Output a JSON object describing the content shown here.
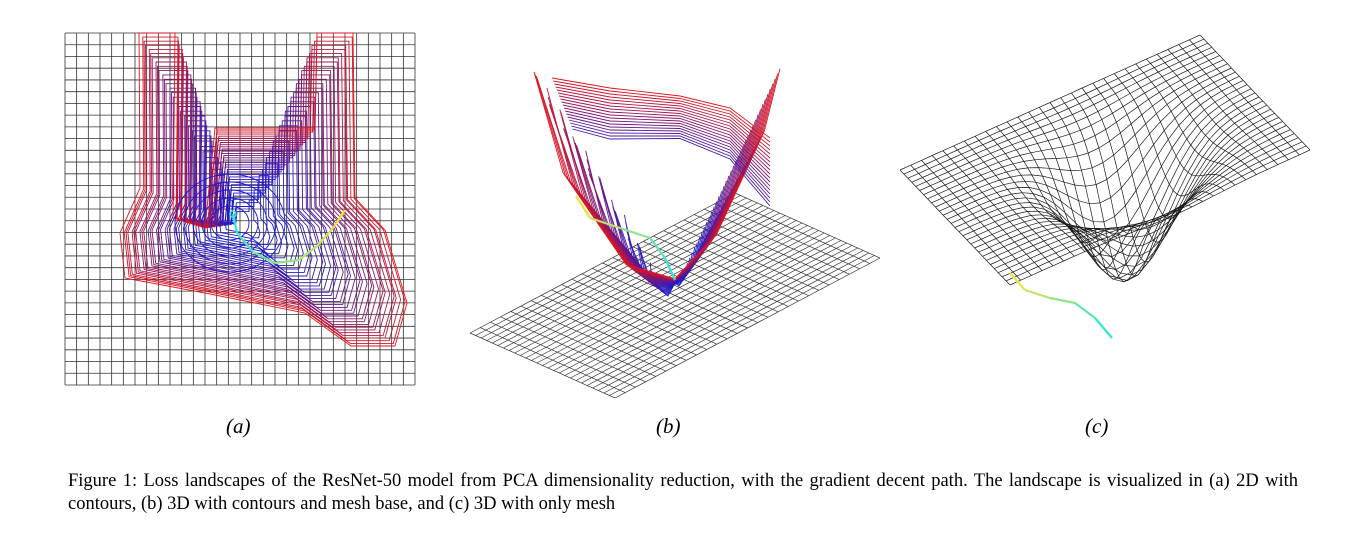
{
  "figure": {
    "panels": [
      {
        "id": "a",
        "label": "(a)"
      },
      {
        "id": "b",
        "label": "(b)"
      },
      {
        "id": "c",
        "label": "(c)"
      }
    ],
    "caption": "Figure 1: Loss landscapes of the ResNet-50 model from PCA dimensionality reduction, with the gradient decent path. The landscape is visualized in (a) 2D with contours, (b) 3D with contours and mesh base, and (c) 3D with only mesh",
    "colors": {
      "contour_low": "#1a1ad0",
      "contour_high": "#e0161e",
      "path_start": "#f2e040",
      "path_end": "#2fe6d8",
      "mesh": "#1a1a1a"
    }
  }
}
